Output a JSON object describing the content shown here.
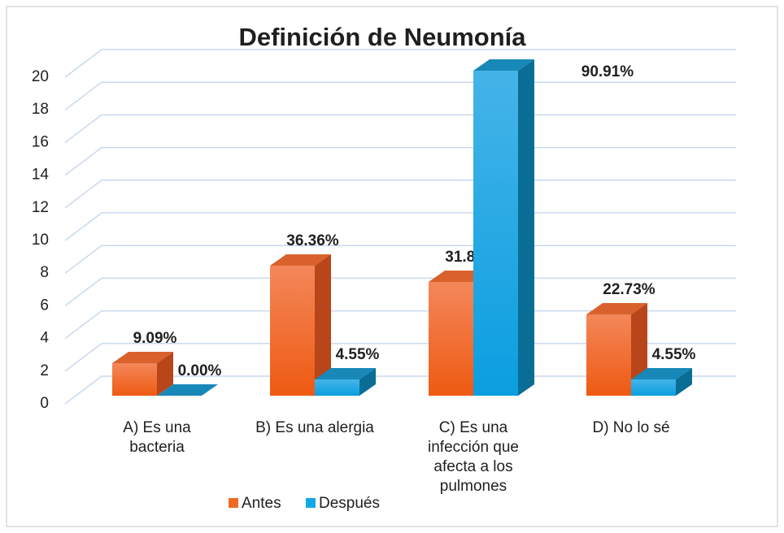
{
  "chart_data": {
    "type": "bar3d",
    "title": "Definición de Neumonía",
    "categories": [
      "A) Es una bacteria",
      "B) Es una alergia",
      "C) Es una infección que afecta a los pulmones",
      "D) No lo sé"
    ],
    "series": [
      {
        "name": "Antes",
        "color": "#f06a23",
        "values": [
          2,
          8,
          7,
          5
        ],
        "value_labels": [
          "9.09%",
          "36.36%",
          "31.82%",
          "22.73%"
        ]
      },
      {
        "name": "Después",
        "color": "#13a8e8",
        "values": [
          0,
          1,
          20,
          1
        ],
        "value_labels": [
          "0.00%",
          "4.55%",
          "90.91%",
          "4.55%"
        ]
      }
    ],
    "ylim": [
      0,
      20
    ],
    "yticks": [
      0,
      2,
      4,
      6,
      8,
      10,
      12,
      14,
      16,
      18,
      20
    ],
    "grid": true,
    "legend": "bottom"
  }
}
